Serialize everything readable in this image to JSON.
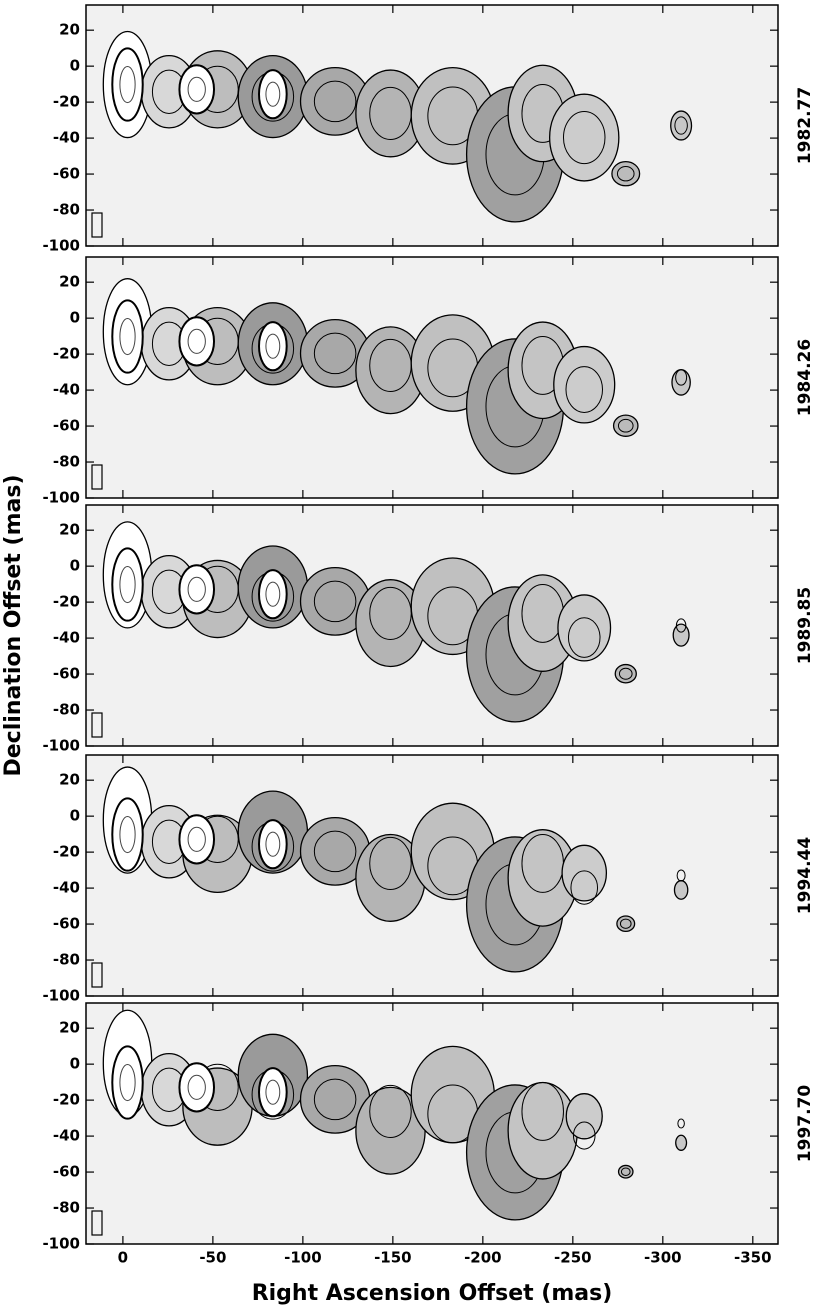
{
  "chart_data": [
    {
      "type": "image",
      "label": "1982.77",
      "xlim": [
        20.5,
        -364
      ],
      "ylim": [
        -100,
        34
      ],
      "xticks": [
        0,
        -50,
        -100,
        -150,
        -200,
        -250,
        -300,
        -350
      ],
      "yticks": [
        20,
        0,
        -20,
        -40,
        -60,
        -80,
        -100
      ]
    },
    {
      "type": "image",
      "label": "1984.26",
      "xlim": [
        20.5,
        -364
      ],
      "ylim": [
        -100,
        34
      ],
      "xticks": [
        0,
        -50,
        -100,
        -150,
        -200,
        -250,
        -300,
        -350
      ],
      "yticks": [
        20,
        0,
        -20,
        -40,
        -60,
        -80,
        -100
      ]
    },
    {
      "type": "image",
      "label": "1989.85",
      "ylabel": "Declination Offset (mas)",
      "xlim": [
        20.5,
        -364
      ],
      "ylim": [
        -100,
        34
      ],
      "xticks": [
        0,
        -50,
        -100,
        -150,
        -200,
        -250,
        -300,
        -350
      ],
      "yticks": [
        20,
        0,
        -20,
        -40,
        -60,
        -80,
        -100
      ]
    },
    {
      "type": "image",
      "label": "1994.44",
      "xlim": [
        20.5,
        -364
      ],
      "ylim": [
        -100,
        34
      ],
      "xticks": [
        0,
        -50,
        -100,
        -150,
        -200,
        -250,
        -300,
        -350
      ],
      "yticks": [
        20,
        0,
        -20,
        -40,
        -60,
        -80,
        -100
      ]
    },
    {
      "type": "image",
      "label": "1997.70",
      "xlabel": "Right Ascension Offset (mas)",
      "xlim": [
        20.5,
        -364
      ],
      "ylim": [
        -100,
        34
      ],
      "xticks": [
        0,
        -50,
        -100,
        -150,
        -200,
        -250,
        -300,
        -350
      ],
      "yticks": [
        20,
        0,
        -20,
        -40,
        -60,
        -80,
        -100
      ]
    }
  ]
}
